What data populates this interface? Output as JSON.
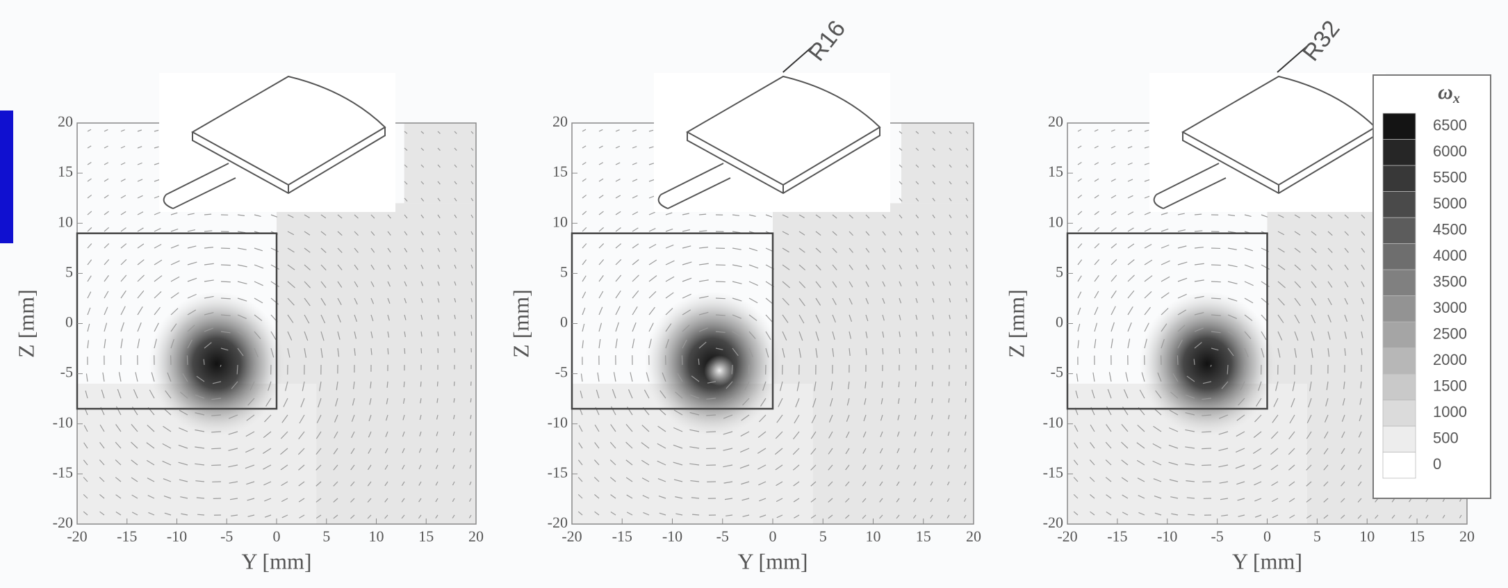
{
  "chart_data": [
    {
      "type": "contour",
      "xlabel": "Y [mm]",
      "ylabel": "Z [mm]",
      "xlim": [
        -20,
        20
      ],
      "ylim": [
        -20,
        20
      ],
      "xticks": [
        -20,
        -15,
        -10,
        -5,
        0,
        5,
        10,
        15,
        20
      ],
      "yticks": [
        -20,
        -15,
        -10,
        -5,
        0,
        5,
        10,
        15,
        20
      ],
      "region": {
        "x": [
          -20,
          0
        ],
        "y": [
          -8.5,
          9
        ]
      }
    },
    {
      "type": "contour",
      "xlabel": "Y [mm]",
      "ylabel": "Z [mm]",
      "xlim": [
        -20,
        20
      ],
      "ylim": [
        -20,
        20
      ],
      "xticks": [
        -20,
        -15,
        -10,
        -5,
        0,
        5,
        10,
        15,
        20
      ],
      "yticks": [
        -20,
        -15,
        -10,
        -5,
        0,
        5,
        10,
        15,
        20
      ],
      "region": {
        "x": [
          -20,
          0
        ],
        "y": [
          -8.5,
          9
        ]
      },
      "annotation": "R16"
    },
    {
      "type": "contour",
      "xlabel": "Y [mm]",
      "ylabel": "Z [mm]",
      "xlim": [
        -20,
        20
      ],
      "ylim": [
        -20,
        20
      ],
      "xticks": [
        -20,
        -15,
        -10,
        -5,
        0,
        5,
        10,
        15,
        20
      ],
      "yticks": [
        -20,
        -15,
        -10,
        -5,
        0,
        5,
        10,
        15,
        20
      ],
      "region": {
        "x": [
          -20,
          0
        ],
        "y": [
          -8.5,
          9
        ]
      },
      "annotation": "R32"
    }
  ],
  "colorbar": {
    "title": "ω",
    "subscript": "x",
    "lim": [
      0,
      6500
    ],
    "levels": [
      0,
      500,
      1000,
      1500,
      2000,
      2500,
      3000,
      3500,
      4000,
      4500,
      5000,
      5500,
      6000,
      6500
    ]
  }
}
